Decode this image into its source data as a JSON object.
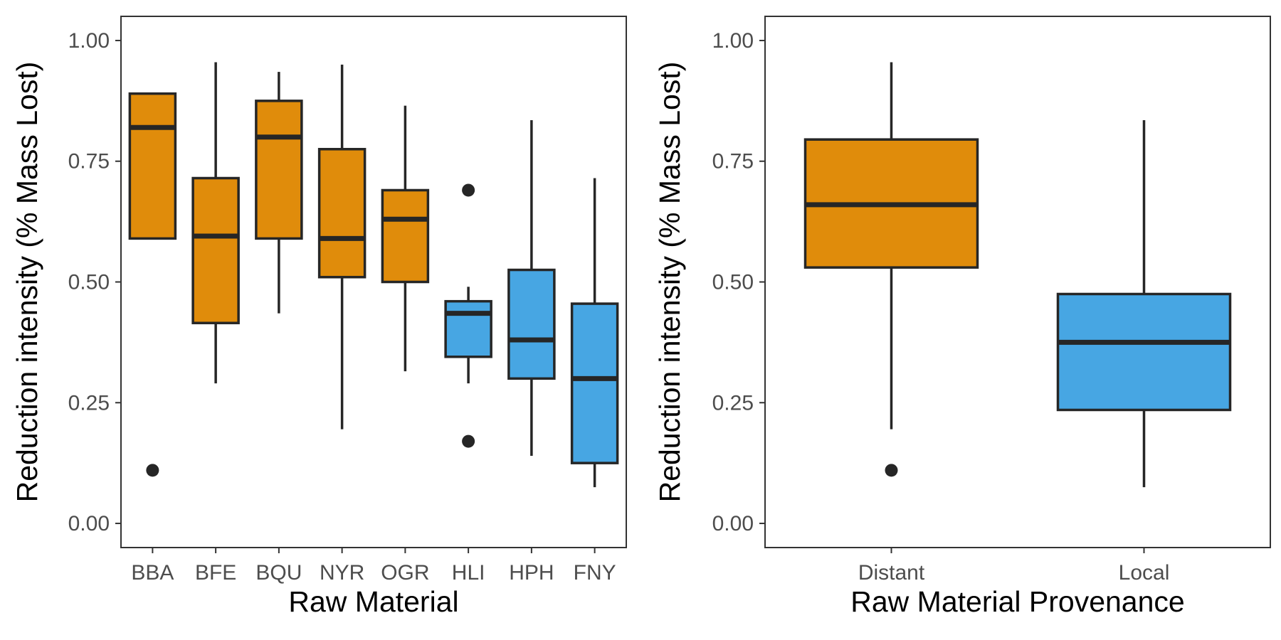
{
  "colors": {
    "distant": "#E08C0B",
    "local": "#47A6E3",
    "outline": "#262626",
    "panel_border": "#333333",
    "background": "#FFFFFF"
  },
  "chart_data": [
    {
      "type": "box",
      "xlabel": "Raw Material",
      "ylabel": "Reduction intensity (% Mass Lost)",
      "ylim": [
        -0.05,
        1.05
      ],
      "yticks": [
        0,
        0.25,
        0.5,
        0.75,
        1.0
      ],
      "ytick_labels": [
        "0.00",
        "0.25",
        "0.50",
        "0.75",
        "1.00"
      ],
      "grid": false,
      "legend": "none",
      "categories": [
        "BBA",
        "BFE",
        "BQU",
        "NYR",
        "OGR",
        "HLI",
        "HPH",
        "FNY"
      ],
      "boxes": [
        {
          "category": "BBA",
          "group": "distant",
          "whisker_low": 0.59,
          "q1": 0.59,
          "median": 0.82,
          "q3": 0.89,
          "whisker_high": 0.89,
          "outliers": [
            0.11
          ]
        },
        {
          "category": "BFE",
          "group": "distant",
          "whisker_low": 0.29,
          "q1": 0.415,
          "median": 0.595,
          "q3": 0.715,
          "whisker_high": 0.955,
          "outliers": []
        },
        {
          "category": "BQU",
          "group": "distant",
          "whisker_low": 0.435,
          "q1": 0.59,
          "median": 0.8,
          "q3": 0.875,
          "whisker_high": 0.935,
          "outliers": []
        },
        {
          "category": "NYR",
          "group": "distant",
          "whisker_low": 0.195,
          "q1": 0.51,
          "median": 0.59,
          "q3": 0.775,
          "whisker_high": 0.95,
          "outliers": []
        },
        {
          "category": "OGR",
          "group": "distant",
          "whisker_low": 0.315,
          "q1": 0.5,
          "median": 0.63,
          "q3": 0.69,
          "whisker_high": 0.865,
          "outliers": []
        },
        {
          "category": "HLI",
          "group": "local",
          "whisker_low": 0.29,
          "q1": 0.345,
          "median": 0.435,
          "q3": 0.46,
          "whisker_high": 0.49,
          "outliers": [
            0.69,
            0.17
          ]
        },
        {
          "category": "HPH",
          "group": "local",
          "whisker_low": 0.14,
          "q1": 0.3,
          "median": 0.38,
          "q3": 0.525,
          "whisker_high": 0.835,
          "outliers": []
        },
        {
          "category": "FNY",
          "group": "local",
          "whisker_low": 0.075,
          "q1": 0.125,
          "median": 0.3,
          "q3": 0.455,
          "whisker_high": 0.715,
          "outliers": []
        }
      ]
    },
    {
      "type": "box",
      "xlabel": "Raw Material Provenance",
      "ylabel": "Reduction intensity (% Mass Lost)",
      "ylim": [
        -0.05,
        1.05
      ],
      "yticks": [
        0,
        0.25,
        0.5,
        0.75,
        1.0
      ],
      "ytick_labels": [
        "0.00",
        "0.25",
        "0.50",
        "0.75",
        "1.00"
      ],
      "grid": false,
      "legend": "none",
      "categories": [
        "Distant",
        "Local"
      ],
      "boxes": [
        {
          "category": "Distant",
          "group": "distant",
          "whisker_low": 0.195,
          "q1": 0.53,
          "median": 0.66,
          "q3": 0.795,
          "whisker_high": 0.955,
          "outliers": [
            0.11
          ]
        },
        {
          "category": "Local",
          "group": "local",
          "whisker_low": 0.075,
          "q1": 0.235,
          "median": 0.375,
          "q3": 0.475,
          "whisker_high": 0.835,
          "outliers": []
        }
      ]
    }
  ]
}
